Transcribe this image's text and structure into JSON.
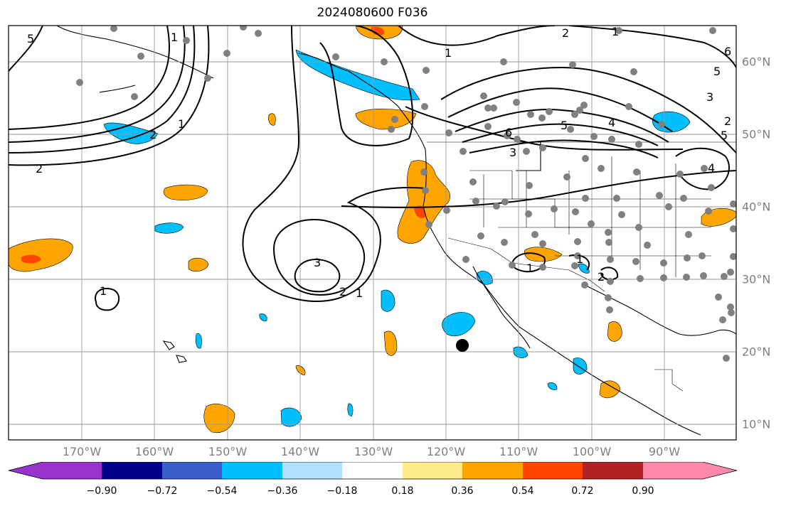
{
  "title": "2024080600 F036",
  "lon_labels": [
    "170°W",
    "160°W",
    "150°W",
    "140°W",
    "130°W",
    "120°W",
    "110°W",
    "100°W",
    "90°W"
  ],
  "lat_labels": [
    "60°N",
    "50°N",
    "40°N",
    "30°N",
    "20°N",
    "10°N"
  ],
  "contour_labels": [
    "5",
    "2",
    "2",
    "1",
    "1",
    "2",
    "6",
    "5",
    "3",
    "4",
    "5",
    "3",
    "5",
    "6",
    "1",
    "2",
    "1",
    "3",
    "2",
    "1",
    "1",
    "1",
    "1",
    "2",
    "4"
  ],
  "colorbar": {
    "ticks": [
      "−0.90",
      "−0.72",
      "−0.54",
      "−0.36",
      "−0.18",
      "0.18",
      "0.36",
      "0.54",
      "0.72",
      "0.90"
    ],
    "colors": [
      "#9a32cd",
      "#00008b",
      "#3a5fcd",
      "#00bfff",
      "#b0e2ff",
      "#ffffff",
      "#ffec8b",
      "#ffa500",
      "#ff4500",
      "#b22222",
      "#ff88aa"
    ]
  },
  "colors": {
    "positive_fill": "#ffa500",
    "strong_positive_fill": "#ff4500",
    "negative_fill": "#00bfff",
    "station_dot": "#808080",
    "marker": "#000000"
  }
}
